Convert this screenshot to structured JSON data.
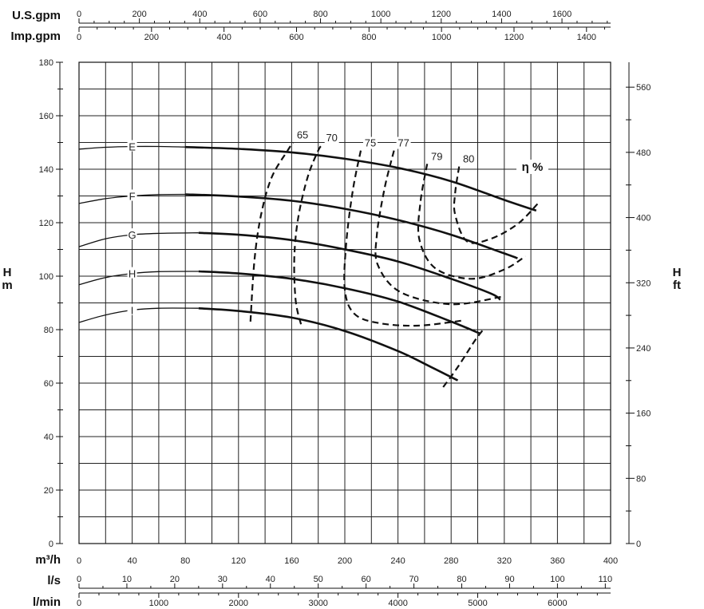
{
  "chart_data": {
    "type": "line",
    "x_unit_label": "m³/h",
    "x_ticks": [
      0,
      40,
      80,
      120,
      160,
      200,
      240,
      280,
      320,
      360,
      400
    ],
    "xlim": [
      0,
      400
    ],
    "ylim": [
      0,
      180
    ],
    "y_left_label": [
      "H",
      "m"
    ],
    "y_left_ticks": [
      0,
      20,
      40,
      60,
      80,
      100,
      120,
      140,
      160,
      180
    ],
    "y_right_label": [
      "H",
      "ft"
    ],
    "y_right_ticks": [
      0,
      80,
      160,
      240,
      320,
      400,
      480,
      560
    ],
    "grid": true,
    "secondary_axes": {
      "usgpm": {
        "label": "U.S.gpm",
        "ticks": [
          0,
          200,
          400,
          600,
          800,
          1000,
          1200,
          1400,
          1600
        ]
      },
      "impgpm": {
        "label": "Imp.gpm",
        "ticks": [
          0,
          200,
          400,
          600,
          800,
          1000,
          1200,
          1400
        ]
      },
      "ls": {
        "label": "l/s",
        "ticks": [
          0,
          10,
          20,
          30,
          40,
          50,
          60,
          70,
          80,
          90,
          100,
          110
        ]
      },
      "lmin": {
        "label": "l/min",
        "ticks": [
          0,
          1000,
          2000,
          3000,
          4000,
          5000,
          6000
        ]
      }
    },
    "series": [
      {
        "name": "E",
        "points": [
          [
            0,
            147.5
          ],
          [
            20,
            148.2
          ],
          [
            40,
            148.5
          ],
          [
            60,
            148.5
          ],
          [
            80,
            148.3
          ],
          [
            120,
            147.6
          ],
          [
            160,
            146.3
          ],
          [
            200,
            143.9
          ],
          [
            240,
            140.5
          ],
          [
            280,
            135.5
          ],
          [
            320,
            128.5
          ],
          [
            344,
            124.5
          ]
        ]
      },
      {
        "name": "F",
        "points": [
          [
            0,
            127.2
          ],
          [
            20,
            129
          ],
          [
            40,
            130
          ],
          [
            60,
            130.5
          ],
          [
            80,
            130.6
          ],
          [
            120,
            129.8
          ],
          [
            160,
            128.2
          ],
          [
            200,
            125.2
          ],
          [
            240,
            121
          ],
          [
            280,
            115.5
          ],
          [
            320,
            108.5
          ],
          [
            330,
            106.7
          ]
        ]
      },
      {
        "name": "G",
        "points": [
          [
            0,
            111
          ],
          [
            20,
            114
          ],
          [
            40,
            115.5
          ],
          [
            60,
            116
          ],
          [
            90,
            116.2
          ],
          [
            120,
            115.5
          ],
          [
            160,
            113.5
          ],
          [
            200,
            110
          ],
          [
            240,
            105.5
          ],
          [
            280,
            99
          ],
          [
            310,
            93.5
          ],
          [
            317,
            91.2
          ]
        ]
      },
      {
        "name": "H",
        "points": [
          [
            0,
            96.8
          ],
          [
            20,
            99.5
          ],
          [
            40,
            101
          ],
          [
            60,
            101.7
          ],
          [
            90,
            101.8
          ],
          [
            120,
            101
          ],
          [
            160,
            99
          ],
          [
            200,
            95.5
          ],
          [
            240,
            90.5
          ],
          [
            280,
            83
          ],
          [
            302,
            78.5
          ]
        ]
      },
      {
        "name": "I",
        "points": [
          [
            0,
            82.7
          ],
          [
            20,
            85.5
          ],
          [
            40,
            87.3
          ],
          [
            60,
            88
          ],
          [
            90,
            88
          ],
          [
            120,
            87
          ],
          [
            160,
            84.5
          ],
          [
            200,
            79.5
          ],
          [
            240,
            72
          ],
          [
            265,
            66
          ],
          [
            285,
            61
          ]
        ]
      }
    ],
    "efficiency_label": "η %",
    "efficiency_curves": [
      {
        "label": "65",
        "points": [
          [
            129,
            83
          ],
          [
            132,
            106
          ],
          [
            137,
            123
          ],
          [
            145,
            137
          ],
          [
            157,
            147
          ],
          [
            161,
            150
          ]
        ]
      },
      {
        "label": "70",
        "points": [
          [
            167,
            82
          ],
          [
            163,
            91
          ],
          [
            162,
            107
          ],
          [
            165,
            122
          ],
          [
            172,
            137
          ],
          [
            180,
            147
          ],
          [
            183,
            149
          ]
        ]
      },
      {
        "label": "75",
        "points": [
          [
            212,
            147
          ],
          [
            206,
            132
          ],
          [
            201,
            112
          ],
          [
            200,
            95
          ],
          [
            207,
            86
          ],
          [
            225,
            82.5
          ],
          [
            255,
            81.5
          ],
          [
            290,
            83.5
          ]
        ]
      },
      {
        "label": "77",
        "points": [
          [
            237,
            147
          ],
          [
            230,
            133
          ],
          [
            224,
            115
          ],
          [
            225,
            104
          ],
          [
            242,
            94
          ],
          [
            280,
            89.5
          ],
          [
            318,
            92.3
          ]
        ]
      },
      {
        "label": "79",
        "points": [
          [
            262,
            142
          ],
          [
            257,
            128
          ],
          [
            256,
            114
          ],
          [
            268,
            103
          ],
          [
            295,
            99
          ],
          [
            320,
            102.5
          ],
          [
            336,
            107.5
          ]
        ]
      },
      {
        "label": "80",
        "points": [
          [
            286,
            141
          ],
          [
            283,
            131
          ],
          [
            283,
            123
          ],
          [
            292,
            113
          ],
          [
            310,
            114
          ],
          [
            330,
            119.5
          ],
          [
            345,
            127
          ]
        ]
      },
      {
        "label": "",
        "points": [
          [
            274,
            58.5
          ],
          [
            285,
            66
          ],
          [
            298,
            76
          ],
          [
            305,
            80.5
          ]
        ]
      }
    ]
  }
}
